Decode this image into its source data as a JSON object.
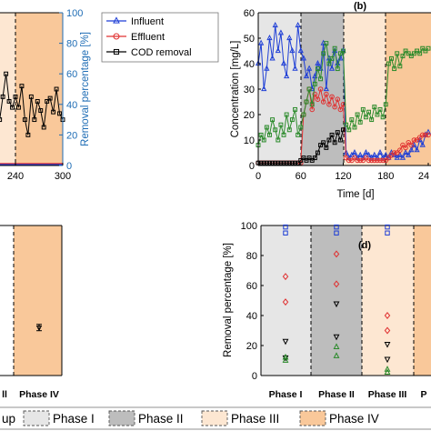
{
  "legend_top": [
    {
      "label": "Influent",
      "color": "#1f3fd6",
      "marker": "triangle"
    },
    {
      "label": "Effluent",
      "color": "#e03030",
      "marker": "circle"
    },
    {
      "label": "COD removal",
      "color": "#000000",
      "marker": "square"
    }
  ],
  "legend_bottom": [
    {
      "label": "up",
      "style": "dashed-none"
    },
    {
      "label": "Phase I",
      "color": "#e6e6e6"
    },
    {
      "label": "Phase II",
      "color": "#bdbdbd"
    },
    {
      "label": "Phase III",
      "color": "#fde7d2"
    },
    {
      "label": "Phase IV",
      "color": "#f9c89a"
    }
  ],
  "panel_a": {
    "right_ylabel": "Removal percentage [%]",
    "yticks": [
      "0",
      "20",
      "40",
      "60",
      "80",
      "100"
    ],
    "xticks": [
      "240",
      "300"
    ],
    "xtick_values": [
      240,
      300
    ],
    "chart_data": {
      "type": "line",
      "series": [
        {
          "name": "COD removal",
          "x": [
            200,
            204,
            208,
            212,
            216,
            220,
            224,
            228,
            232,
            236,
            240,
            244,
            248,
            252,
            256,
            260,
            264,
            268,
            272,
            276,
            280,
            284,
            288,
            292,
            296,
            300
          ],
          "values": [
            52,
            47,
            58,
            40,
            35,
            30,
            45,
            60,
            42,
            38,
            45,
            38,
            52,
            30,
            20,
            45,
            30,
            42,
            36,
            25,
            42,
            44,
            35,
            50,
            34,
            30
          ]
        }
      ]
    }
  },
  "panel_b": {
    "label": "(b)",
    "ylabel": "Concentration [mg/L]",
    "xlabel": "Time [d]",
    "yticks": [
      "0",
      "10",
      "20",
      "30",
      "40",
      "50",
      "60"
    ],
    "xticks": [
      "0",
      "60",
      "120",
      "180",
      "24"
    ],
    "chart_data": {
      "type": "line",
      "xlim": [
        0,
        240
      ],
      "ylim": [
        0,
        60
      ],
      "series": [
        {
          "name": "Influent",
          "color": "#1f3fd6",
          "x": [
            0,
            4,
            8,
            12,
            16,
            20,
            24,
            28,
            32,
            36,
            40,
            44,
            48,
            52,
            56,
            60,
            64,
            68,
            72,
            76,
            80,
            84,
            88,
            92,
            96,
            100,
            104,
            108,
            112,
            116,
            120,
            124,
            128,
            132,
            136,
            140,
            144,
            148,
            152,
            156,
            160,
            164,
            168,
            172,
            176,
            180,
            184,
            188,
            192,
            196,
            200,
            204,
            208,
            212,
            216,
            220,
            224,
            228,
            232,
            236,
            240
          ],
          "values": [
            40,
            48,
            30,
            38,
            50,
            42,
            55,
            45,
            52,
            40,
            35,
            50,
            45,
            38,
            55,
            45,
            42,
            35,
            38,
            30,
            35,
            40,
            38,
            48,
            30,
            42,
            38,
            45,
            40,
            42,
            45,
            5,
            3,
            4,
            5,
            3,
            4,
            3,
            5,
            4,
            3,
            4,
            3,
            5,
            3,
            4,
            3,
            5,
            4,
            3,
            4,
            3,
            5,
            4,
            6,
            8,
            6,
            10,
            8,
            12,
            13
          ]
        },
        {
          "name": "Effluent",
          "color": "#e03030",
          "x": [
            0,
            4,
            8,
            12,
            16,
            20,
            24,
            28,
            32,
            36,
            40,
            44,
            48,
            52,
            56,
            60,
            64,
            68,
            72,
            76,
            80,
            84,
            88,
            92,
            96,
            100,
            104,
            108,
            112,
            116,
            120,
            124,
            128,
            132,
            136,
            140,
            144,
            148,
            152,
            156,
            160,
            164,
            168,
            172,
            176,
            180,
            184,
            188,
            192,
            196,
            200,
            204,
            208,
            212,
            216,
            220,
            224,
            228,
            232,
            236,
            240
          ],
          "values": [
            1,
            1,
            1,
            1,
            1,
            1,
            1,
            1,
            1,
            1,
            1,
            1,
            1,
            1,
            1,
            1,
            20,
            25,
            30,
            22,
            28,
            26,
            30,
            25,
            28,
            24,
            27,
            23,
            26,
            22,
            24,
            3,
            2,
            2,
            3,
            2,
            2,
            2,
            3,
            2,
            2,
            2,
            2,
            2,
            2,
            2,
            3,
            4,
            5,
            5,
            6,
            8,
            7,
            9,
            8,
            10,
            10,
            11,
            12,
            12,
            12
          ]
        },
        {
          "name": "COD removal",
          "color": "#000000",
          "x": [
            0,
            4,
            8,
            12,
            16,
            20,
            24,
            28,
            32,
            36,
            40,
            44,
            48,
            52,
            56,
            60,
            64,
            68,
            72,
            76,
            80,
            84,
            88,
            92,
            96,
            100,
            104,
            108,
            112,
            116,
            120
          ],
          "values": [
            1,
            1,
            1,
            1,
            1,
            1,
            1,
            1,
            1,
            1,
            1,
            1,
            1,
            1,
            1,
            2,
            3,
            2,
            3,
            2,
            3,
            5,
            8,
            9,
            7,
            10,
            12,
            9,
            13,
            10,
            14
          ]
        },
        {
          "name": "",
          "color": "#2a8a2a",
          "x": [
            0,
            4,
            8,
            12,
            16,
            20,
            24,
            28,
            32,
            36,
            40,
            44,
            48,
            52,
            56,
            60,
            64,
            68,
            72,
            76,
            80,
            84,
            88,
            92,
            96,
            100,
            104,
            108,
            112,
            116,
            120,
            124,
            128,
            132,
            136,
            140,
            144,
            148,
            152,
            156,
            160,
            164,
            168,
            172,
            176,
            180,
            184,
            188,
            192,
            196,
            200,
            204,
            208,
            212,
            216,
            220,
            224,
            228,
            232,
            236,
            240
          ],
          "values": [
            8,
            12,
            10,
            15,
            12,
            18,
            14,
            10,
            16,
            12,
            20,
            14,
            18,
            22,
            12,
            15,
            20,
            25,
            30,
            24,
            32,
            38,
            34,
            44,
            48,
            40,
            42,
            46,
            38,
            44,
            45,
            16,
            14,
            18,
            15,
            20,
            17,
            22,
            19,
            21,
            18,
            23,
            20,
            22,
            19,
            24,
            40,
            42,
            38,
            44,
            39,
            43,
            45,
            44,
            43,
            44,
            45,
            44,
            46,
            45,
            46
          ]
        }
      ]
    }
  },
  "panel_c": {
    "xticklabels": [
      "ll",
      "Phase IV"
    ],
    "chart_data": {
      "type": "scatter",
      "series": [
        {
          "name": "",
          "x": [
            "Phase IV"
          ],
          "values": [
            32
          ]
        }
      ]
    }
  },
  "panel_d": {
    "label": "(d)",
    "ylabel": "Removal percentage [%]",
    "yticks": [
      "0",
      "20",
      "40",
      "60",
      "80",
      "100"
    ],
    "xticklabels": [
      "Phase I",
      "Phase II",
      "Phase III",
      "P"
    ],
    "chart_data": {
      "type": "scatter",
      "categories": [
        "Phase I",
        "Phase II",
        "Phase III"
      ],
      "ylim": [
        0,
        100
      ],
      "series": [
        {
          "name": "",
          "color": "#1f3fd6",
          "marker": "square",
          "values": [
            [
              95,
              99
            ],
            [
              95,
              99
            ],
            [
              95,
              99
            ]
          ]
        },
        {
          "name": "",
          "color": "#e03030",
          "marker": "diamond",
          "values": [
            [
              49,
              66
            ],
            [
              61,
              81
            ],
            [
              30,
              40
            ]
          ]
        },
        {
          "name": "",
          "color": "#000000",
          "marker": "triangle-down",
          "values": [
            [
              12,
              23
            ],
            [
              26,
              48
            ],
            [
              11,
              21
            ]
          ]
        },
        {
          "name": "",
          "color": "#2a8a2a",
          "marker": "triangle",
          "values": [
            [
              10,
              12
            ],
            [
              13,
              19
            ],
            [
              2,
              4
            ]
          ]
        }
      ]
    }
  }
}
